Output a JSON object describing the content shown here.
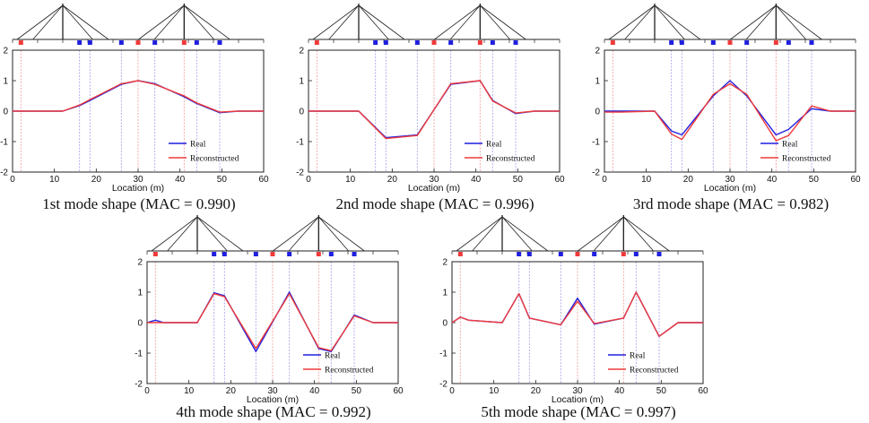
{
  "figure": {
    "series_labels": [
      "Real",
      "Reconstructed"
    ],
    "colors": {
      "real": "#1f1fe0",
      "reconstructed": "#f03a3a",
      "frame": "#222222",
      "guide_red": "#f2a3a3",
      "guide_blue": "#a8a8ee"
    }
  },
  "chart_data": [
    {
      "type": "line",
      "title": "1st mode shape (MAC = 0.990)",
      "xlabel": "Location (m)",
      "ylabel": "",
      "xlim": [
        0,
        60
      ],
      "ylim": [
        -2,
        2
      ],
      "x_ticks": [
        0,
        10,
        20,
        30,
        40,
        50,
        60
      ],
      "y_ticks": [
        -2,
        -1,
        0,
        1,
        2
      ],
      "legend": "bottom-right",
      "sensors": {
        "red": [
          2,
          30,
          41
        ],
        "blue": [
          16,
          18.5,
          26,
          34,
          44,
          49.5
        ]
      },
      "series": [
        {
          "name": "Real",
          "x": [
            0,
            12,
            16,
            18.5,
            26,
            30,
            34,
            41,
            44,
            49.5,
            54,
            60
          ],
          "values": [
            0,
            0,
            0.18,
            0.35,
            0.88,
            1.0,
            0.9,
            0.47,
            0.25,
            -0.05,
            0,
            0
          ]
        },
        {
          "name": "Reconstructed",
          "x": [
            0,
            12,
            16,
            18.5,
            26,
            30,
            34,
            41,
            44,
            49.5,
            54,
            60
          ],
          "values": [
            0,
            0,
            0.2,
            0.38,
            0.9,
            1.0,
            0.88,
            0.5,
            0.27,
            -0.03,
            0,
            0
          ]
        }
      ]
    },
    {
      "type": "line",
      "title": "2nd mode shape (MAC = 0.996)",
      "xlabel": "Location (m)",
      "ylabel": "",
      "xlim": [
        0,
        60
      ],
      "ylim": [
        -2,
        2
      ],
      "x_ticks": [
        0,
        10,
        20,
        30,
        40,
        50,
        60
      ],
      "y_ticks": [
        -2,
        -1,
        0,
        1,
        2
      ],
      "legend": "bottom-right",
      "sensors": {
        "red": [
          2,
          30,
          41
        ],
        "blue": [
          16,
          18.5,
          26,
          34,
          44,
          49.5
        ]
      },
      "series": [
        {
          "name": "Real",
          "x": [
            0,
            12,
            18.5,
            26,
            34,
            41,
            44,
            49.5,
            54,
            60
          ],
          "values": [
            0,
            0,
            -0.87,
            -0.78,
            0.88,
            1.0,
            0.35,
            -0.08,
            0,
            0
          ]
        },
        {
          "name": "Reconstructed",
          "x": [
            0,
            12,
            18.5,
            26,
            34,
            41,
            44,
            49.5,
            54,
            60
          ],
          "values": [
            0,
            0,
            -0.9,
            -0.8,
            0.9,
            1.0,
            0.33,
            -0.06,
            0,
            0
          ]
        }
      ]
    },
    {
      "type": "line",
      "title": "3rd mode shape (MAC = 0.982)",
      "xlabel": "Location (m)",
      "ylabel": "",
      "xlim": [
        0,
        60
      ],
      "ylim": [
        -2,
        2
      ],
      "x_ticks": [
        0,
        10,
        20,
        30,
        40,
        50,
        60
      ],
      "y_ticks": [
        -2,
        -1,
        0,
        1,
        2
      ],
      "legend": "bottom-right",
      "sensors": {
        "red": [
          2,
          30,
          41
        ],
        "blue": [
          16,
          18.5,
          26,
          34,
          44,
          49.5
        ]
      },
      "series": [
        {
          "name": "Real",
          "x": [
            0,
            4,
            12,
            16,
            18.5,
            26,
            30,
            34,
            41,
            44,
            49.5,
            54,
            60
          ],
          "values": [
            0,
            0,
            0,
            -0.65,
            -0.78,
            0.5,
            1.0,
            0.5,
            -0.78,
            -0.6,
            0.08,
            0,
            0
          ]
        },
        {
          "name": "Reconstructed",
          "x": [
            0,
            4,
            12,
            16,
            18.5,
            26,
            30,
            34,
            41,
            44,
            49.5,
            54,
            60
          ],
          "values": [
            -0.03,
            -0.03,
            0,
            -0.75,
            -0.93,
            0.55,
            0.9,
            0.55,
            -0.97,
            -0.8,
            0.17,
            0,
            0
          ]
        }
      ]
    },
    {
      "type": "line",
      "title": "4th mode shape (MAC = 0.992)",
      "xlabel": "Location (m)",
      "ylabel": "",
      "xlim": [
        0,
        60
      ],
      "ylim": [
        -2,
        2
      ],
      "x_ticks": [
        0,
        10,
        20,
        30,
        40,
        50,
        60
      ],
      "y_ticks": [
        -2,
        -1,
        0,
        1,
        2
      ],
      "legend": "bottom-right",
      "sensors": {
        "red": [
          2,
          30,
          41
        ],
        "blue": [
          16,
          18.5,
          26,
          34,
          44,
          49.5
        ]
      },
      "series": [
        {
          "name": "Real",
          "x": [
            0,
            2,
            4,
            12,
            16,
            18.5,
            26,
            34,
            41,
            44,
            49.5,
            54,
            60
          ],
          "values": [
            0,
            0.08,
            0,
            0,
            0.98,
            0.88,
            -0.95,
            1.0,
            -0.85,
            -0.95,
            0.25,
            0,
            0
          ]
        },
        {
          "name": "Reconstructed",
          "x": [
            0,
            2,
            4,
            12,
            16,
            18.5,
            26,
            34,
            41,
            44,
            49.5,
            54,
            60
          ],
          "values": [
            0,
            0,
            0,
            0,
            0.95,
            0.85,
            -0.85,
            0.95,
            -0.82,
            -0.92,
            0.22,
            0,
            0
          ]
        }
      ]
    },
    {
      "type": "line",
      "title": "5th mode shape (MAC = 0.997)",
      "xlabel": "Location (m)",
      "ylabel": "",
      "xlim": [
        0,
        60
      ],
      "ylim": [
        -2,
        2
      ],
      "x_ticks": [
        0,
        10,
        20,
        30,
        40,
        50,
        60
      ],
      "y_ticks": [
        -2,
        -1,
        0,
        1,
        2
      ],
      "legend": "bottom-right",
      "sensors": {
        "red": [
          2,
          30,
          41
        ],
        "blue": [
          16,
          18.5,
          26,
          34,
          44,
          49.5
        ]
      },
      "series": [
        {
          "name": "Real",
          "x": [
            0,
            2,
            4,
            12,
            16,
            18.5,
            26,
            30,
            34,
            41,
            44,
            49.5,
            54,
            60
          ],
          "values": [
            0,
            0.18,
            0.08,
            0,
            0.95,
            0.15,
            -0.07,
            0.8,
            -0.05,
            0.15,
            1.0,
            -0.45,
            0,
            0
          ]
        },
        {
          "name": "Reconstructed",
          "x": [
            0,
            2,
            4,
            12,
            16,
            18.5,
            26,
            30,
            34,
            41,
            44,
            49.5,
            54,
            60
          ],
          "values": [
            0,
            0.18,
            0.08,
            0,
            0.95,
            0.15,
            -0.07,
            0.7,
            -0.03,
            0.15,
            1.0,
            -0.45,
            0,
            0
          ]
        }
      ]
    }
  ]
}
